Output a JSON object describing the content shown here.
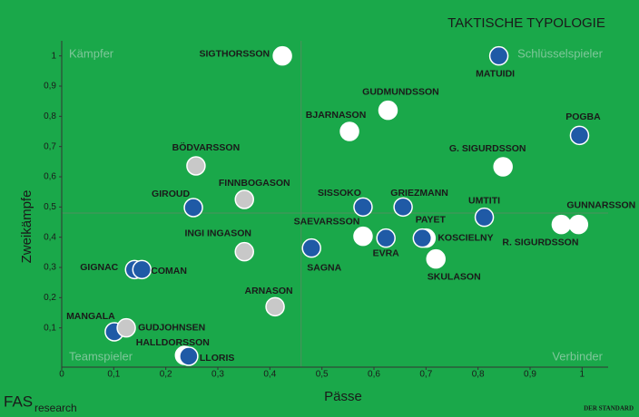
{
  "chart_data": {
    "type": "scatter",
    "title": "TAKTISCHE TYPOLOGIE",
    "x_label": "Pässe",
    "y_label": "Zweikämpfe",
    "quadrants": {
      "top_left": "Kämpfer",
      "top_right": "Schlüsselspieler",
      "bottom_left": "Teamspieler",
      "bottom_right": "Verbinder"
    },
    "quadrant_lines": {
      "x": 0.46,
      "y": 0.48
    },
    "xlim": [
      0,
      1.05
    ],
    "ylim": [
      -0.03,
      1.05
    ],
    "xticks": [
      0,
      {
        "value": 0.1,
        "label": "0,1"
      },
      {
        "value": 0.2,
        "label": "0,2"
      },
      {
        "value": 0.3,
        "label": "0,3"
      },
      {
        "value": 0.4,
        "label": "0,4"
      },
      {
        "value": 0.5,
        "label": "0,5"
      },
      {
        "value": 0.6,
        "label": "0,6"
      },
      {
        "value": 0.7,
        "label": "0,7"
      },
      {
        "value": 0.8,
        "label": "0,8"
      },
      {
        "value": 0.9,
        "label": "0,9"
      },
      1
    ],
    "yticks": [
      {
        "value": 0.1,
        "label": "0,1"
      },
      {
        "value": 0.2,
        "label": "0,2"
      },
      {
        "value": 0.3,
        "label": "0,3"
      },
      {
        "value": 0.4,
        "label": "0,4"
      },
      {
        "value": 0.5,
        "label": "0,5"
      },
      {
        "value": 0.6,
        "label": "0,6"
      },
      {
        "value": 0.7,
        "label": "0,7"
      },
      {
        "value": 0.8,
        "label": "0,8"
      },
      {
        "value": 0.9,
        "label": "0,9"
      },
      1
    ],
    "points": [
      {
        "label": "SIGTHORSSON",
        "x": 0.424,
        "y": 1.0,
        "color": "#ffffff"
      },
      {
        "label": "MATUIDI",
        "x": 0.84,
        "y": 1.0,
        "color": "#1f5aa6"
      },
      {
        "label": "GUDMUNDSSON",
        "x": 0.627,
        "y": 0.82,
        "color": "#ffffff"
      },
      {
        "label": "BJARNASON",
        "x": 0.553,
        "y": 0.75,
        "color": "#ffffff"
      },
      {
        "label": "POGBA",
        "x": 0.995,
        "y": 0.737,
        "color": "#1f5aa6"
      },
      {
        "label": "G. SIGURDSSON",
        "x": 0.848,
        "y": 0.633,
        "color": "#ffffff"
      },
      {
        "label": "BÖDVARSSON",
        "x": 0.258,
        "y": 0.636,
        "color": "#c8c8c8"
      },
      {
        "label": "FINNBOGASON",
        "x": 0.351,
        "y": 0.525,
        "color": "#c8c8c8"
      },
      {
        "label": "GIROUD",
        "x": 0.253,
        "y": 0.498,
        "color": "#1f5aa6"
      },
      {
        "label": "SISSOKO",
        "x": 0.579,
        "y": 0.5,
        "color": "#1f5aa6"
      },
      {
        "label": "GRIEZMANN",
        "x": 0.656,
        "y": 0.5,
        "color": "#1f5aa6"
      },
      {
        "label": "UMTITI",
        "x": 0.812,
        "y": 0.466,
        "color": "#1f5aa6"
      },
      {
        "label": "GUNNARSSON",
        "x": 0.993,
        "y": 0.442,
        "color": "#ffffff"
      },
      {
        "label": "R. SIGURDSSON",
        "x": 0.96,
        "y": 0.442,
        "color": "#ffffff"
      },
      {
        "label": "PAYET",
        "x": 0.7,
        "y": 0.397,
        "color": "#ffffff"
      },
      {
        "label": "KOSCIELNY",
        "x": 0.693,
        "y": 0.397,
        "color": "#1f5aa6"
      },
      {
        "label": "SAEVARSSON",
        "x": 0.579,
        "y": 0.403,
        "color": "#ffffff"
      },
      {
        "label": "EVRA",
        "x": 0.623,
        "y": 0.397,
        "color": "#1f5aa6"
      },
      {
        "label": "INGI INGASON",
        "x": 0.351,
        "y": 0.352,
        "color": "#c8c8c8"
      },
      {
        "label": "SAGNA",
        "x": 0.48,
        "y": 0.364,
        "color": "#1f5aa6"
      },
      {
        "label": "SKULASON",
        "x": 0.719,
        "y": 0.328,
        "color": "#ffffff"
      },
      {
        "label": "GIGNAC",
        "x": 0.14,
        "y": 0.293,
        "color": "#1f5aa6"
      },
      {
        "label": "COMAN",
        "x": 0.154,
        "y": 0.293,
        "color": "#1f5aa6"
      },
      {
        "label": "ARNASON",
        "x": 0.41,
        "y": 0.17,
        "color": "#c8c8c8"
      },
      {
        "label": "MANGALA",
        "x": 0.101,
        "y": 0.087,
        "color": "#1f5aa6"
      },
      {
        "label": "GUDJOHNSEN",
        "x": 0.124,
        "y": 0.1,
        "color": "#c8c8c8"
      },
      {
        "label": "HALLDORSSON",
        "x": 0.236,
        "y": 0.009,
        "color": "#ffffff"
      },
      {
        "label": "LLORIS",
        "x": 0.244,
        "y": 0.006,
        "color": "#1f5aa6"
      }
    ],
    "logo": {
      "main": "FAS",
      "sub": "research"
    },
    "source": "DER STANDARD"
  }
}
